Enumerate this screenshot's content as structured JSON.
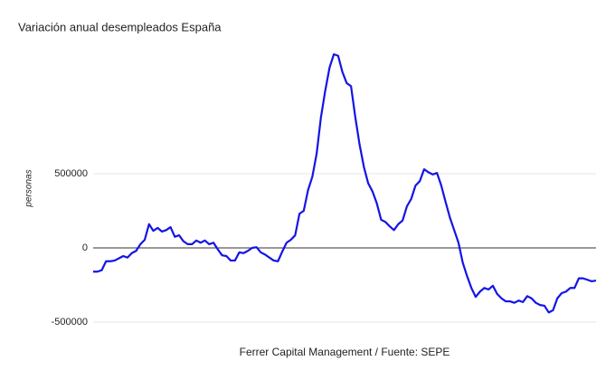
{
  "chart_data": {
    "type": "line",
    "title": "Variación anual desempleados España",
    "y_label": "personas",
    "note": "Ferrer Capital Management / Fuente: SEPE",
    "series": [
      {
        "name": "desempleados",
        "color": "#1414e6",
        "values": [
          -160000,
          -160000,
          -150000,
          -90000,
          -90000,
          -85000,
          -70000,
          -55000,
          -65000,
          -35000,
          -20000,
          25000,
          55000,
          160000,
          115000,
          135000,
          110000,
          120000,
          140000,
          75000,
          85000,
          45000,
          25000,
          25000,
          50000,
          35000,
          50000,
          25000,
          35000,
          -10000,
          -50000,
          -55000,
          -85000,
          -85000,
          -30000,
          -35000,
          -20000,
          0,
          5000,
          -30000,
          -45000,
          -65000,
          -85000,
          -90000,
          -25000,
          35000,
          55000,
          85000,
          230000,
          250000,
          390000,
          480000,
          635000,
          880000,
          1060000,
          1215000,
          1305000,
          1295000,
          1185000,
          1110000,
          1090000,
          880000,
          695000,
          545000,
          435000,
          380000,
          300000,
          190000,
          175000,
          145000,
          120000,
          160000,
          185000,
          280000,
          330000,
          420000,
          450000,
          530000,
          510000,
          495000,
          505000,
          420000,
          310000,
          205000,
          120000,
          35000,
          -100000,
          -190000,
          -270000,
          -330000,
          -295000,
          -270000,
          -280000,
          -255000,
          -310000,
          -340000,
          -360000,
          -360000,
          -370000,
          -355000,
          -365000,
          -325000,
          -340000,
          -370000,
          -385000,
          -390000,
          -435000,
          -420000,
          -340000,
          -305000,
          -295000,
          -270000,
          -270000,
          -205000,
          -205000,
          -215000,
          -225000,
          -220000
        ]
      }
    ],
    "ylim": [
      -500000,
      1350000
    ],
    "yticks": [
      -500000,
      0,
      500000
    ],
    "grid": true
  }
}
